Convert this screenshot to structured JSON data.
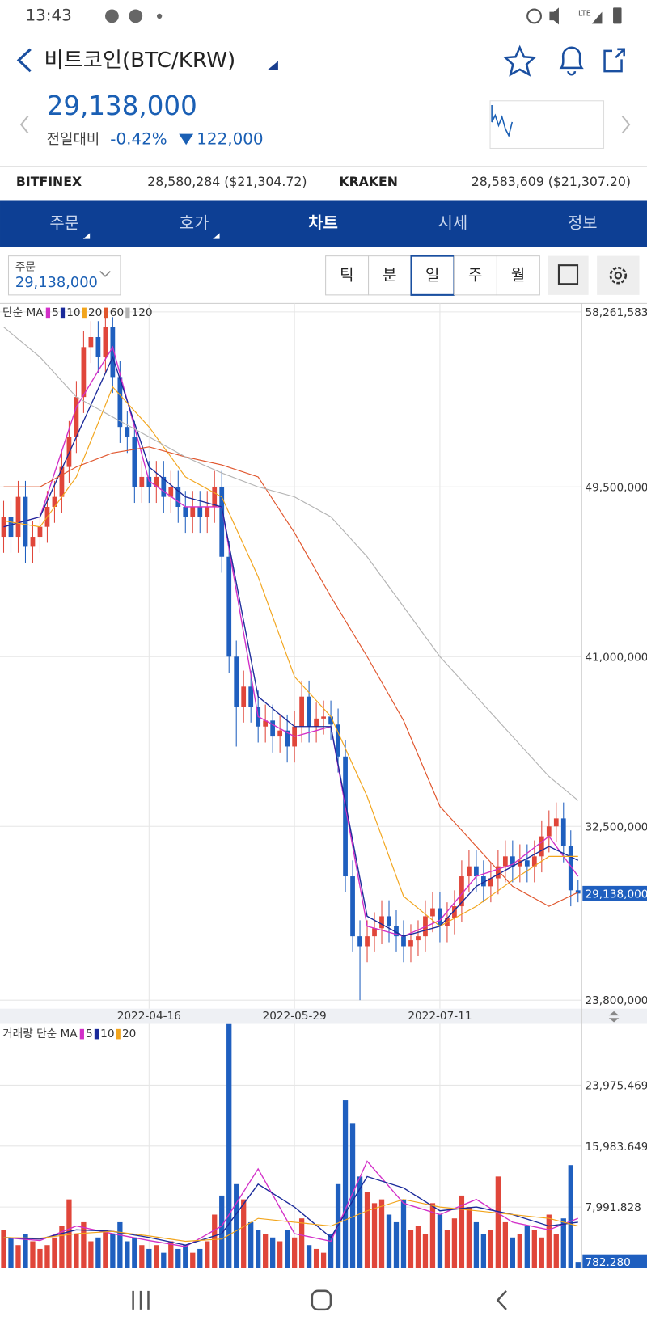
{
  "status_bar": {
    "time": "13:43",
    "network": "LTE"
  },
  "header": {
    "title": "비트코인(BTC/KRW)",
    "price": "29,138,000",
    "change_label": "전일대비",
    "change_pct": "-0.42%",
    "change_amount": "122,000"
  },
  "exchanges": [
    {
      "name": "BITFINEX",
      "price": "28,580,284 ($21,304.72)"
    },
    {
      "name": "KRAKEN",
      "price": "28,583,609 ($21,307.20)"
    }
  ],
  "tabs": [
    "주문",
    "호가",
    "차트",
    "시세",
    "정보"
  ],
  "order_box": {
    "label": "주문",
    "value": "29,138,000"
  },
  "periods": [
    "틱",
    "분",
    "일",
    "주",
    "월"
  ],
  "chart_data": [
    {
      "type": "candlestick",
      "legend_label": "단순 MA",
      "up_color": "#e0463a",
      "down_color": "#1f5fbf",
      "grid": true,
      "categories": [
        null,
        null,
        null,
        null,
        null,
        null,
        null,
        null,
        null,
        null,
        null,
        null,
        null,
        null,
        null,
        null,
        null,
        null,
        null,
        null,
        "2022-04-16",
        null,
        null,
        null,
        null,
        null,
        null,
        null,
        null,
        null,
        null,
        null,
        null,
        null,
        null,
        null,
        null,
        null,
        null,
        null,
        "2022-05-29",
        null,
        null,
        null,
        null,
        null,
        null,
        null,
        null,
        null,
        null,
        null,
        null,
        null,
        null,
        null,
        null,
        null,
        null,
        null,
        "2022-07-11",
        null,
        null,
        null,
        null,
        null,
        null,
        null,
        null,
        null,
        null,
        null,
        null,
        null,
        null,
        null,
        null,
        null,
        null,
        null
      ],
      "open": [
        47000000,
        48000000,
        47000000,
        49000000,
        46500000,
        47000000,
        47500000,
        48500000,
        49000000,
        50500000,
        52000000,
        54000000,
        56500000,
        57000000,
        56000000,
        57500000,
        55000000,
        52500000,
        52000000,
        49500000,
        50000000,
        49500000,
        50000000,
        49000000,
        49500000,
        48500000,
        48000000,
        48500000,
        48000000,
        48500000,
        49500000,
        46000000,
        41000000,
        38500000,
        39500000,
        38500000,
        37500000,
        37800000,
        37000000,
        37300000,
        36500000,
        37500000,
        39000000,
        37500000,
        37900000,
        38000000,
        37600000,
        36000000,
        30000000,
        27000000,
        26500000,
        27000000,
        27400000,
        28000000,
        27500000,
        27000000,
        26500000,
        26800000,
        27000000,
        28000000,
        28400000,
        27500000,
        27900000,
        28500000,
        30000000,
        30500000,
        30000000,
        29500000,
        29900000,
        30500000,
        31000000,
        30500000,
        30800000,
        30500000,
        31000000,
        32000000,
        32500000,
        32900000,
        31500000,
        29300000
      ],
      "high": [
        48800000,
        48800000,
        49800000,
        49800000,
        47800000,
        48300000,
        49300000,
        49800000,
        51300000,
        52800000,
        54800000,
        57300000,
        57800000,
        57800000,
        58261583,
        58000000,
        55800000,
        53300000,
        52800000,
        50800000,
        50800000,
        50800000,
        50800000,
        50300000,
        50300000,
        49300000,
        49300000,
        49300000,
        49300000,
        50300000,
        50300000,
        46800000,
        41800000,
        40300000,
        40300000,
        39300000,
        38600000,
        38600000,
        38100000,
        38100000,
        38300000,
        39800000,
        39800000,
        38700000,
        38800000,
        38800000,
        38400000,
        36800000,
        30800000,
        27800000,
        27800000,
        28200000,
        28800000,
        28800000,
        28300000,
        27800000,
        27600000,
        27800000,
        28800000,
        29200000,
        29200000,
        28700000,
        29300000,
        30800000,
        31300000,
        31300000,
        30800000,
        30700000,
        31300000,
        31800000,
        31800000,
        31600000,
        31600000,
        31800000,
        32800000,
        33300000,
        33700000,
        33700000,
        32300000,
        29800000
      ],
      "low": [
        46200000,
        46200000,
        46200000,
        45700000,
        45700000,
        46200000,
        46700000,
        47700000,
        48200000,
        49700000,
        51200000,
        53200000,
        55700000,
        55200000,
        55200000,
        54200000,
        51700000,
        51200000,
        48700000,
        48700000,
        48700000,
        48700000,
        48200000,
        48200000,
        47700000,
        47200000,
        47200000,
        47200000,
        47200000,
        47700000,
        45200000,
        40200000,
        36500000,
        37700000,
        37700000,
        36700000,
        36700000,
        36200000,
        36200000,
        35700000,
        35700000,
        36700000,
        36700000,
        36700000,
        37100000,
        36800000,
        35200000,
        29200000,
        26200000,
        23800000,
        25700000,
        26200000,
        26600000,
        26700000,
        26200000,
        25700000,
        25700000,
        26000000,
        26200000,
        27200000,
        26700000,
        26700000,
        27100000,
        27700000,
        29200000,
        29200000,
        28700000,
        28700000,
        29100000,
        29700000,
        29700000,
        29700000,
        29700000,
        29700000,
        30200000,
        31200000,
        31700000,
        30700000,
        28500000,
        28700000
      ],
      "close": [
        48000000,
        47000000,
        49000000,
        46500000,
        47000000,
        47500000,
        48500000,
        49000000,
        50500000,
        52000000,
        54000000,
        56500000,
        57000000,
        56000000,
        57500000,
        55000000,
        52500000,
        52000000,
        49500000,
        50000000,
        49500000,
        50000000,
        49000000,
        49500000,
        48500000,
        48000000,
        48500000,
        48000000,
        48500000,
        49500000,
        46000000,
        41000000,
        38500000,
        39500000,
        38500000,
        37500000,
        37800000,
        37000000,
        37300000,
        36500000,
        37500000,
        39000000,
        37500000,
        37900000,
        38000000,
        37600000,
        36000000,
        30000000,
        27000000,
        26500000,
        27000000,
        27400000,
        28000000,
        27500000,
        27000000,
        26500000,
        26800000,
        27000000,
        28000000,
        28400000,
        27500000,
        27900000,
        28500000,
        30000000,
        30500000,
        30000000,
        29500000,
        29900000,
        30500000,
        31000000,
        30500000,
        30800000,
        30500000,
        31000000,
        32000000,
        32500000,
        32900000,
        31500000,
        29300000,
        29138000
      ],
      "series": [
        {
          "name": "5",
          "color": "#d22fc8",
          "x": [
            0,
            5,
            10,
            15,
            20,
            25,
            30,
            35,
            40,
            45,
            50,
            55,
            60,
            65,
            70,
            75,
            79
          ],
          "values": [
            47500000,
            48000000,
            53500000,
            56500000,
            49800000,
            48500000,
            48500000,
            38000000,
            37000000,
            37500000,
            27500000,
            27000000,
            27800000,
            30000000,
            30600000,
            32000000,
            30000000
          ]
        },
        {
          "name": "10",
          "color": "#1a2a9a",
          "x": [
            0,
            5,
            10,
            15,
            20,
            25,
            30,
            35,
            40,
            45,
            50,
            55,
            60,
            65,
            70,
            75,
            79
          ],
          "values": [
            47500000,
            48000000,
            52000000,
            56000000,
            50500000,
            49000000,
            48500000,
            39000000,
            37500000,
            37500000,
            28000000,
            27000000,
            27500000,
            29500000,
            30500000,
            31500000,
            30800000
          ]
        },
        {
          "name": "20",
          "color": "#f2a51c",
          "x": [
            0,
            5,
            10,
            15,
            20,
            25,
            30,
            35,
            40,
            45,
            50,
            55,
            60,
            65,
            70,
            75,
            79
          ],
          "values": [
            47800000,
            47500000,
            50000000,
            54500000,
            52500000,
            50000000,
            49000000,
            45000000,
            40000000,
            38000000,
            34000000,
            29000000,
            27500000,
            28500000,
            29800000,
            31000000,
            31000000
          ]
        },
        {
          "name": "60",
          "color": "#e0552c",
          "x": [
            0,
            5,
            10,
            15,
            20,
            25,
            30,
            35,
            40,
            45,
            50,
            55,
            60,
            65,
            70,
            75,
            79
          ],
          "values": [
            49500000,
            49500000,
            50500000,
            51200000,
            51500000,
            51000000,
            50600000,
            50000000,
            47200000,
            44000000,
            41000000,
            37800000,
            33500000,
            31500000,
            29500000,
            28500000,
            29200000
          ]
        },
        {
          "name": "120",
          "color": "#b4b4b4",
          "x": [
            0,
            5,
            10,
            15,
            20,
            25,
            30,
            35,
            40,
            45,
            50,
            55,
            60,
            65,
            70,
            75,
            79
          ],
          "values": [
            57500000,
            56000000,
            54000000,
            53000000,
            52000000,
            51000000,
            50200000,
            49500000,
            49000000,
            48000000,
            46000000,
            43500000,
            41000000,
            39000000,
            37000000,
            35000000,
            33800000
          ]
        }
      ],
      "ylim": [
        23800000,
        58261583
      ],
      "yticks": [
        {
          "value": 58261583,
          "label": "58,261,583"
        },
        {
          "value": 49500000,
          "label": "49,500,000"
        },
        {
          "value": 41000000,
          "label": "41,000,000"
        },
        {
          "value": 32500000,
          "label": "32,500,000"
        },
        {
          "value": 23800000,
          "label": "23,800,000"
        }
      ],
      "last_label": {
        "value": 29138000,
        "label": "29,138,000"
      }
    },
    {
      "type": "bar",
      "legend_label": "거래량 단순 MA",
      "grid": true,
      "values": [
        5000,
        4000,
        3000,
        4500,
        3500,
        2500,
        3000,
        4000,
        5500,
        9000,
        4500,
        6000,
        3500,
        4000,
        5000,
        4500,
        6000,
        3500,
        4000,
        3000,
        2500,
        3000,
        2000,
        3500,
        2500,
        3000,
        2000,
        2500,
        3500,
        7000,
        9500,
        32000,
        11000,
        9000,
        6000,
        5000,
        4500,
        4000,
        3500,
        5000,
        4000,
        6500,
        3000,
        2500,
        2000,
        4500,
        11000,
        22000,
        19000,
        12000,
        10000,
        8500,
        9000,
        7000,
        6000,
        9000,
        5000,
        5500,
        4500,
        8500,
        7000,
        5000,
        6500,
        9500,
        8000,
        6000,
        4500,
        5000,
        12000,
        6000,
        4000,
        4500,
        5500,
        5000,
        4000,
        7000,
        4500,
        6500,
        13500,
        782.28
      ],
      "series": [
        {
          "name": "5",
          "color": "#d22fc8",
          "x": [
            0,
            5,
            10,
            15,
            20,
            25,
            30,
            35,
            40,
            45,
            50,
            55,
            60,
            65,
            70,
            75,
            79
          ],
          "values": [
            4000,
            3600,
            5500,
            4500,
            3600,
            2800,
            5500,
            13000,
            4500,
            3500,
            14000,
            8500,
            7000,
            9000,
            6000,
            5000,
            6500
          ]
        },
        {
          "name": "10",
          "color": "#1a2a9a",
          "x": [
            0,
            5,
            10,
            15,
            20,
            25,
            30,
            35,
            40,
            45,
            50,
            55,
            60,
            65,
            70,
            75,
            79
          ],
          "values": [
            4000,
            3800,
            5000,
            4800,
            4000,
            3000,
            4500,
            11000,
            8000,
            4000,
            12000,
            10500,
            7500,
            8000,
            7000,
            5500,
            6000
          ]
        },
        {
          "name": "20",
          "color": "#f2a51c",
          "x": [
            0,
            5,
            10,
            15,
            20,
            25,
            30,
            35,
            40,
            45,
            50,
            55,
            60,
            65,
            70,
            75,
            79
          ],
          "values": [
            4000,
            3900,
            4500,
            4800,
            4200,
            3500,
            3800,
            6500,
            6000,
            5500,
            7500,
            9000,
            8000,
            7500,
            7000,
            6500,
            5500
          ]
        }
      ],
      "ylim": [
        0,
        31800
      ],
      "yticks": [
        {
          "value": 23975.469,
          "label": "23,975.469"
        },
        {
          "value": 15983.649,
          "label": "15,983.649"
        },
        {
          "value": 7991.828,
          "label": "7,991.828"
        }
      ],
      "last_label": {
        "value": 782.28,
        "label": "782.280"
      }
    }
  ]
}
